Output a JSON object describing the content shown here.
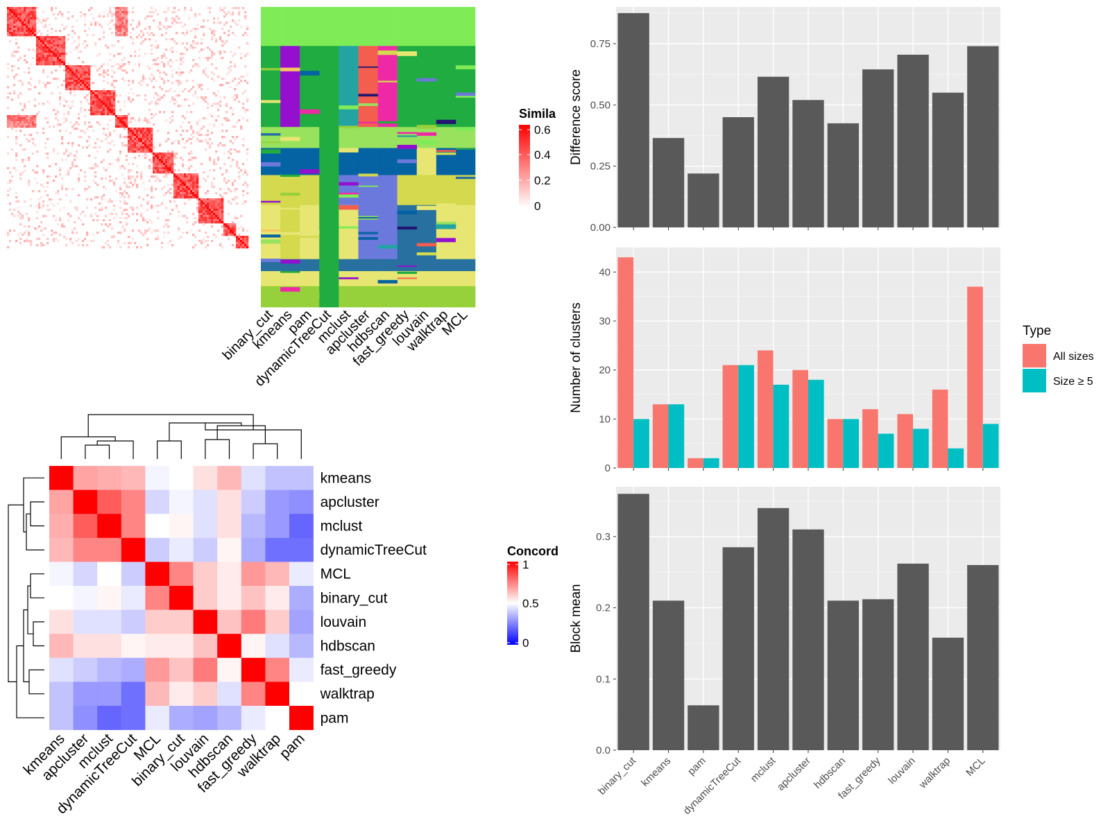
{
  "heatmap_legends": {
    "similarity": {
      "title": "Simila",
      "ticks": [
        "0.6",
        "0.4",
        "0.2",
        "0"
      ],
      "colors": [
        "#ffffff",
        "#ff0000"
      ]
    },
    "concordance": {
      "title": "Concord",
      "ticks": [
        "1",
        "0.5",
        "0"
      ],
      "colors": [
        "#0000ff",
        "#ffffff",
        "#ff0000"
      ]
    }
  },
  "membership_columns": [
    "binary_cut",
    "kmeans",
    "pam",
    "dynamicTreeCut",
    "mclust",
    "apcluster",
    "hdbscan",
    "fast_greedy",
    "louvain",
    "walktrap",
    "MCL"
  ],
  "concordance_order": [
    "kmeans",
    "apcluster",
    "mclust",
    "dynamicTreeCut",
    "MCL",
    "binary_cut",
    "louvain",
    "hdbscan",
    "fast_greedy",
    "walktrap",
    "pam"
  ],
  "chart_data": [
    {
      "type": "heatmap",
      "name": "similarity_matrix",
      "description_values": "approximate block-diagonal similarity matrix",
      "row_labels": [],
      "col_labels": [],
      "legend_title": "Simila",
      "range": [
        0,
        0.6
      ]
    },
    {
      "type": "heatmap",
      "name": "concordance",
      "row_labels": [
        "kmeans",
        "apcluster",
        "mclust",
        "dynamicTreeCut",
        "MCL",
        "binary_cut",
        "louvain",
        "hdbscan",
        "fast_greedy",
        "walktrap",
        "pam"
      ],
      "col_labels": [
        "kmeans",
        "apcluster",
        "mclust",
        "dynamicTreeCut",
        "MCL",
        "binary_cut",
        "louvain",
        "hdbscan",
        "fast_greedy",
        "walktrap",
        "pam"
      ],
      "legend_title": "Concord",
      "range": [
        0,
        1
      ],
      "values": [
        [
          1.0,
          0.68,
          0.66,
          0.64,
          0.48,
          0.5,
          0.56,
          0.64,
          0.44,
          0.38,
          0.38
        ],
        [
          0.68,
          1.0,
          0.82,
          0.74,
          0.42,
          0.48,
          0.44,
          0.56,
          0.4,
          0.3,
          0.28
        ],
        [
          0.66,
          0.82,
          1.0,
          0.74,
          0.5,
          0.52,
          0.44,
          0.56,
          0.36,
          0.3,
          0.2
        ],
        [
          0.64,
          0.74,
          0.74,
          1.0,
          0.4,
          0.46,
          0.4,
          0.52,
          0.34,
          0.22,
          0.22
        ],
        [
          0.48,
          0.42,
          0.5,
          0.4,
          1.0,
          0.74,
          0.6,
          0.54,
          0.7,
          0.64,
          0.46
        ],
        [
          0.5,
          0.48,
          0.52,
          0.46,
          0.74,
          1.0,
          0.6,
          0.54,
          0.62,
          0.54,
          0.34
        ],
        [
          0.56,
          0.44,
          0.44,
          0.4,
          0.6,
          0.6,
          1.0,
          0.62,
          0.76,
          0.6,
          0.32
        ],
        [
          0.64,
          0.56,
          0.56,
          0.52,
          0.54,
          0.54,
          0.62,
          1.0,
          0.52,
          0.44,
          0.36
        ],
        [
          0.44,
          0.4,
          0.36,
          0.34,
          0.7,
          0.62,
          0.76,
          0.52,
          1.0,
          0.74,
          0.46
        ],
        [
          0.38,
          0.3,
          0.3,
          0.22,
          0.64,
          0.54,
          0.6,
          0.44,
          0.74,
          1.0,
          0.5
        ],
        [
          0.38,
          0.28,
          0.2,
          0.22,
          0.46,
          0.34,
          0.32,
          0.36,
          0.46,
          0.5,
          1.0
        ]
      ]
    },
    {
      "type": "bar",
      "name": "difference_score",
      "categories": [
        "binary_cut",
        "kmeans",
        "pam",
        "dynamicTreeCut",
        "mclust",
        "apcluster",
        "hdbscan",
        "fast_greedy",
        "louvain",
        "walktrap",
        "MCL"
      ],
      "values": [
        0.875,
        0.365,
        0.22,
        0.45,
        0.615,
        0.52,
        0.425,
        0.645,
        0.705,
        0.55,
        0.74
      ],
      "ylabel": "Difference score",
      "ylim": [
        0,
        0.9
      ],
      "yticks": [
        0,
        0.25,
        0.5,
        0.75
      ],
      "ytick_labels": [
        "0.00",
        "0.25",
        "0.50",
        "0.75"
      ],
      "grid": true,
      "color": "#595959"
    },
    {
      "type": "bar",
      "name": "number_of_clusters",
      "categories": [
        "binary_cut",
        "kmeans",
        "pam",
        "dynamicTreeCut",
        "mclust",
        "apcluster",
        "hdbscan",
        "fast_greedy",
        "louvain",
        "walktrap",
        "MCL"
      ],
      "series": [
        {
          "name": "All sizes",
          "values": [
            43,
            13,
            2,
            21,
            24,
            20,
            10,
            12,
            11,
            16,
            37
          ],
          "color": "#F8766D"
        },
        {
          "name": "Size ≥ 5",
          "values": [
            10,
            13,
            2,
            21,
            17,
            18,
            10,
            7,
            8,
            4,
            9
          ],
          "color": "#00BFC4"
        }
      ],
      "ylabel": "Number of clusters",
      "ylim": [
        0,
        45
      ],
      "yticks": [
        0,
        10,
        20,
        30,
        40
      ],
      "ytick_labels": [
        "0",
        "10",
        "20",
        "30",
        "40"
      ],
      "legend_title": "Type",
      "legend_position": "right",
      "grid": true
    },
    {
      "type": "bar",
      "name": "block_mean",
      "categories": [
        "binary_cut",
        "kmeans",
        "pam",
        "dynamicTreeCut",
        "mclust",
        "apcluster",
        "hdbscan",
        "fast_greedy",
        "louvain",
        "walktrap",
        "MCL"
      ],
      "values": [
        0.36,
        0.21,
        0.063,
        0.285,
        0.34,
        0.31,
        0.21,
        0.212,
        0.262,
        0.158,
        0.26
      ],
      "ylabel": "Block mean",
      "ylim": [
        0,
        0.37
      ],
      "yticks": [
        0,
        0.1,
        0.2,
        0.3
      ],
      "ytick_labels": [
        "0.0",
        "0.1",
        "0.2",
        "0.3"
      ],
      "grid": true,
      "color": "#595959"
    }
  ],
  "palette": {
    "membership": [
      "#7FEC57",
      "#20AC40",
      "#F6C866",
      "#0563A3",
      "#D4D94E",
      "#E7E672",
      "#2870A0",
      "#98E25E",
      "#6B79DC",
      "#9410CE",
      "#F35E4F",
      "#24A3A3",
      "#EF29A6",
      "#21156F",
      "#96D03B"
    ]
  }
}
